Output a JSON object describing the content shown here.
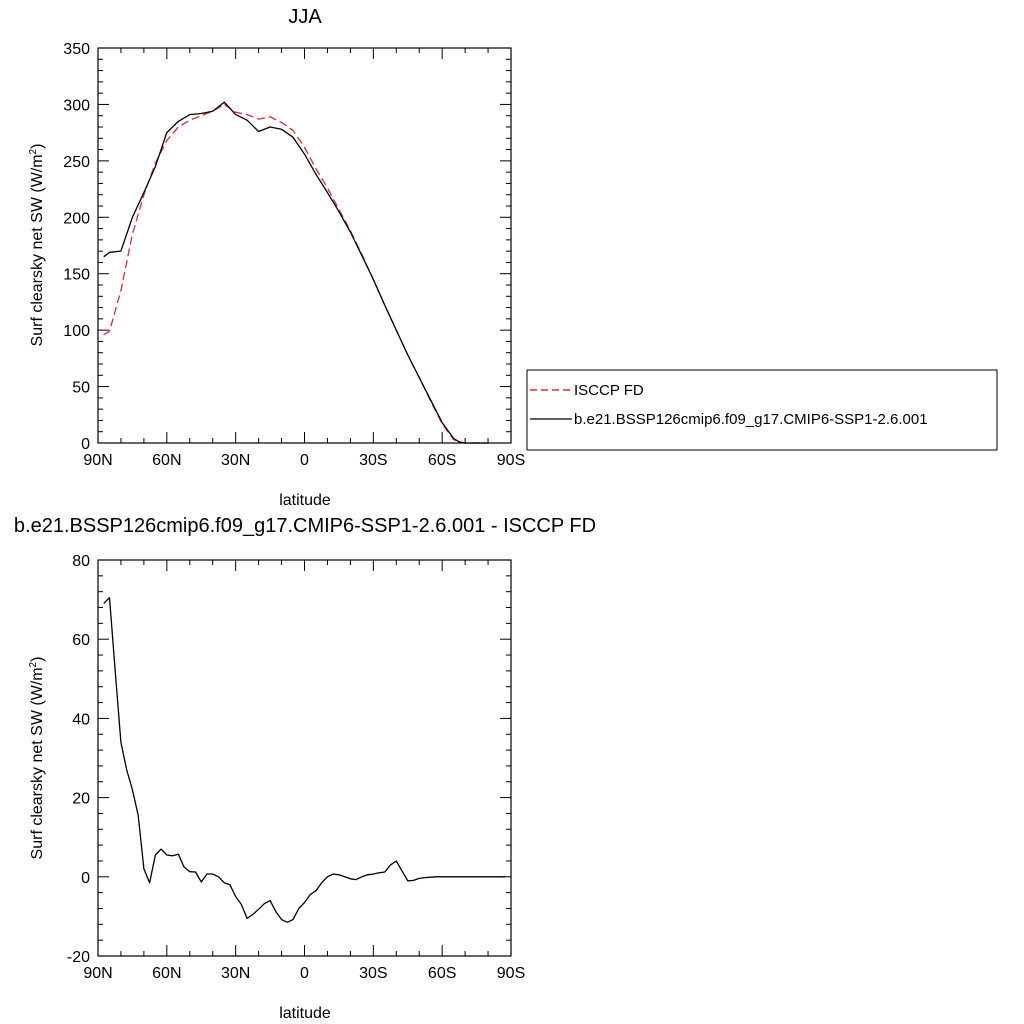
{
  "chart_data": [
    {
      "type": "line",
      "title": "JJA",
      "xlabel": "latitude",
      "ylabel": "Surf clearsky net SW (W/m",
      "ylabel_sup": "2",
      "ylabel_tail": ")",
      "xlim": [
        90,
        -90
      ],
      "ylim": [
        0,
        350
      ],
      "xticks": [
        90,
        60,
        30,
        0,
        -30,
        -60,
        -90
      ],
      "xtick_labels": [
        "90N",
        "60N",
        "30N",
        "0",
        "30S",
        "60S",
        "90S"
      ],
      "yticks": [
        0,
        50,
        100,
        150,
        200,
        250,
        300,
        350
      ],
      "ytick_labels": [
        "0",
        "50",
        "100",
        "150",
        "200",
        "250",
        "300",
        "350"
      ],
      "legend_position": "right",
      "series": [
        {
          "name": "ISCCP FD",
          "color": "#e8282c",
          "dash": "dashed",
          "x": [
            87.5,
            85,
            80,
            75,
            70,
            65,
            60,
            55,
            50,
            45,
            40,
            35,
            30,
            25,
            20,
            15,
            10,
            5,
            0,
            -5,
            -10,
            -15,
            -20,
            -25,
            -30,
            -35,
            -40,
            -45,
            -50,
            -55,
            -60,
            -65,
            -67.5,
            -70,
            -75,
            -80
          ],
          "y": [
            96,
            99,
            135,
            185,
            220,
            248,
            268,
            280,
            286,
            290,
            294,
            300,
            293,
            291,
            287,
            289,
            284,
            277,
            262,
            243,
            226,
            207,
            188,
            167,
            145,
            122,
            100,
            78,
            58,
            37,
            17,
            3,
            1,
            0,
            0,
            0
          ]
        },
        {
          "name": "b.e21.BSSP126cmip6.f09_g17.CMIP6-SSP1-2.6.001",
          "color": "#000000",
          "dash": "solid",
          "x": [
            87.5,
            85,
            80,
            75,
            70,
            65,
            60,
            55,
            50,
            45,
            40,
            35,
            30,
            25,
            20,
            15,
            10,
            5,
            0,
            -5,
            -10,
            -15,
            -20,
            -25,
            -30,
            -35,
            -40,
            -45,
            -50,
            -55,
            -60,
            -65,
            -67.5,
            -70,
            -75,
            -80
          ],
          "y": [
            165,
            169,
            170,
            200,
            222,
            245,
            275,
            285,
            291,
            292,
            294,
            302,
            291,
            286,
            276,
            280,
            278,
            271,
            256,
            238,
            222,
            205,
            187,
            166,
            145,
            122,
            100,
            78,
            58,
            38,
            18,
            4,
            1,
            0,
            0,
            0
          ]
        }
      ]
    },
    {
      "type": "line",
      "title": "b.e21.BSSP126cmip6.f09_g17.CMIP6-SSP1-2.6.001 - ISCCP FD",
      "xlabel": "latitude",
      "ylabel": "Surf clearsky net SW (W/m",
      "ylabel_sup": "2",
      "ylabel_tail": ")",
      "xlim": [
        90,
        -90
      ],
      "ylim": [
        -20,
        80
      ],
      "xticks": [
        90,
        60,
        30,
        0,
        -30,
        -60,
        -90
      ],
      "xtick_labels": [
        "90N",
        "60N",
        "30N",
        "0",
        "30S",
        "60S",
        "90S"
      ],
      "yticks": [
        -20,
        0,
        20,
        40,
        60,
        80
      ],
      "ytick_labels": [
        "-20",
        "0",
        "20",
        "40",
        "60",
        "80"
      ],
      "series": [
        {
          "name": "",
          "color": "#000000",
          "dash": "solid",
          "x": [
            87.5,
            85,
            82.5,
            80,
            77.5,
            75,
            72.5,
            70,
            67.5,
            65,
            62.5,
            60,
            57.5,
            55,
            52.5,
            50,
            47.5,
            45,
            42.5,
            40,
            37.5,
            35,
            32.5,
            30,
            27.5,
            25,
            22.5,
            20,
            17.5,
            15,
            12.5,
            10,
            7.5,
            5,
            2.5,
            0,
            -2.5,
            -5,
            -7.5,
            -10,
            -12.5,
            -15,
            -17.5,
            -20,
            -22.5,
            -25,
            -27.5,
            -30,
            -32.5,
            -35,
            -37.5,
            -40,
            -42.5,
            -45,
            -47.5,
            -50,
            -52.5,
            -55,
            -57.5,
            -60,
            -62.5,
            -65,
            -67.5,
            -70,
            -72.5,
            -75,
            -77.5,
            -80,
            -82.5,
            -85,
            -87.5
          ],
          "y": [
            69,
            70.5,
            52,
            34,
            27,
            22,
            15.5,
            2,
            -1.5,
            5.5,
            7,
            5.5,
            5.3,
            5.7,
            2.5,
            1.3,
            1.2,
            -1.3,
            0.7,
            0.7,
            0,
            -1.5,
            -2,
            -5,
            -7,
            -10.5,
            -9.5,
            -8.2,
            -6.8,
            -6,
            -8.8,
            -10.8,
            -11.5,
            -10.8,
            -8,
            -6.5,
            -4.5,
            -3.5,
            -1.5,
            0,
            0.7,
            0.5,
            0,
            -0.5,
            -0.7,
            0,
            0.5,
            0.7,
            1,
            1.2,
            3,
            4,
            1.5,
            -1,
            -0.9,
            -0.4,
            -0.2,
            -0.1,
            0,
            0,
            0,
            0,
            0,
            0,
            0,
            0,
            0,
            0,
            0,
            0,
            0
          ]
        }
      ]
    }
  ]
}
